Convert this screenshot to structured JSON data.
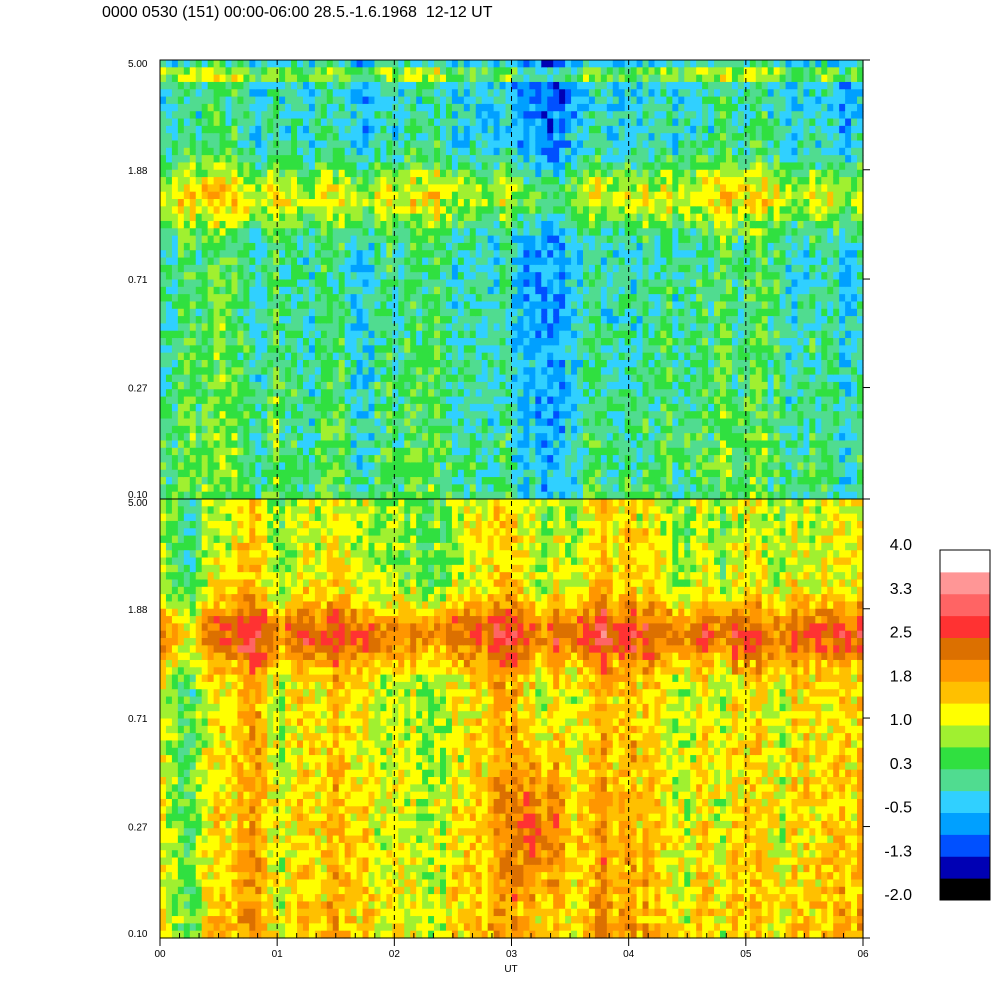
{
  "chart_data": {
    "type": "heatmap",
    "title": "0000 0530 (151) 00:00-06:00 28.5.-1.6.1968  12-12 UT",
    "xlabel": "UT",
    "x_ticks": [
      "00",
      "01",
      "02",
      "03",
      "04",
      "05",
      "06"
    ],
    "x_range_hours": [
      0,
      6
    ],
    "y_log_scale": true,
    "y_range": [
      0.1,
      5.0
    ],
    "y_ticks": [
      "5.00",
      "1.88",
      "0.71",
      "0.27",
      "0.10"
    ],
    "vertical_reference_lines_at_hours": [
      1,
      2,
      3,
      4,
      5
    ],
    "panels": [
      {
        "id": "upper",
        "dominant_values": "mostly -0.5 to 1.0 (green/cyan), blue patches near 1.88–5.00, yellow band near 1.88",
        "band_center_y": 1.5,
        "band_value": 1.0,
        "base_value": 0.2,
        "top_value": -0.3
      },
      {
        "id": "lower",
        "dominant_values": "mostly 1.0 to 2.5 (yellow/orange), strong orange band near 1.5, red patch near 03:15 at 0.27",
        "band_center_y": 1.5,
        "band_value": 2.3,
        "base_value": 1.4,
        "top_value": 0.9
      }
    ],
    "colorbar": {
      "labels": [
        "4.0",
        "3.3",
        "2.5",
        "1.8",
        "1.0",
        "0.3",
        "-0.5",
        "-1.3",
        "-2.0"
      ],
      "range": [
        -2.0,
        4.0
      ],
      "colors": [
        "#000000",
        "#0000b4",
        "#0050ff",
        "#00a0ff",
        "#30d0ff",
        "#50dc90",
        "#30e040",
        "#a0f030",
        "#ffff00",
        "#ffc000",
        "#ff9600",
        "#dc7000",
        "#ff3232",
        "#ff6464",
        "#ff9696",
        "#ffffff"
      ]
    }
  }
}
